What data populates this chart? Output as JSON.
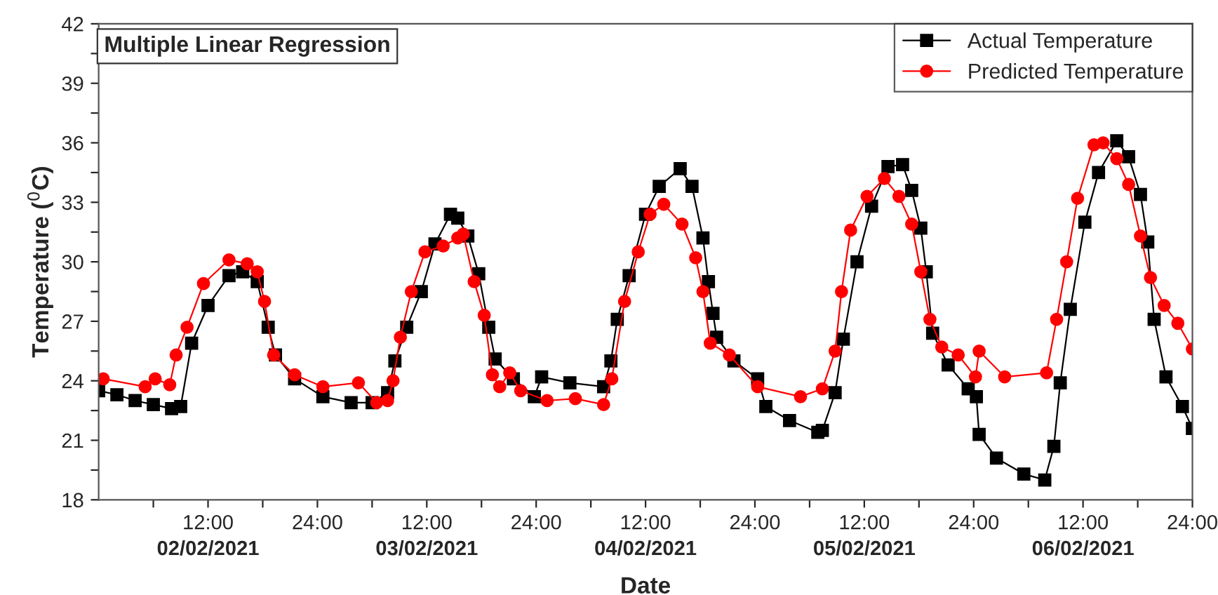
{
  "chart_data": {
    "type": "line",
    "title": "Multiple Linear Regression",
    "xlabel": "Date",
    "ylabel": "Temperature ($^{0}$C)",
    "xlim": [
      "2021-02-02T00:00",
      "2021-02-07T00:00"
    ],
    "ylim": [
      18,
      42
    ],
    "xticks": [
      {
        "value": "2021-02-02T06:00",
        "label": null
      },
      {
        "value": "2021-02-02T12:00",
        "label": "12:00"
      },
      {
        "value": "2021-02-02T18:00",
        "label": null
      },
      {
        "value": "2021-02-03T00:00",
        "label": "24:00"
      },
      {
        "value": "2021-02-03T06:00",
        "label": null
      },
      {
        "value": "2021-02-03T12:00",
        "label": "12:00"
      },
      {
        "value": "2021-02-03T18:00",
        "label": null
      },
      {
        "value": "2021-02-04T00:00",
        "label": "24:00"
      },
      {
        "value": "2021-02-04T06:00",
        "label": null
      },
      {
        "value": "2021-02-04T12:00",
        "label": "12:00"
      },
      {
        "value": "2021-02-04T18:00",
        "label": null
      },
      {
        "value": "2021-02-05T00:00",
        "label": "24:00"
      },
      {
        "value": "2021-02-05T06:00",
        "label": null
      },
      {
        "value": "2021-02-05T12:00",
        "label": "12:00"
      },
      {
        "value": "2021-02-05T18:00",
        "label": null
      },
      {
        "value": "2021-02-06T00:00",
        "label": "24:00"
      },
      {
        "value": "2021-02-06T06:00",
        "label": null
      },
      {
        "value": "2021-02-06T12:00",
        "label": "12:00"
      },
      {
        "value": "2021-02-06T18:00",
        "label": null
      },
      {
        "value": "2021-02-07T00:00",
        "label": "24:00"
      }
    ],
    "yticks": [
      18,
      {
        "value": 19.5,
        "label": null
      },
      21,
      {
        "value": 22.5,
        "label": null
      },
      24,
      {
        "value": 25.5,
        "label": null
      },
      27,
      {
        "value": 28.5,
        "label": null
      },
      30,
      {
        "value": 31.5,
        "label": null
      },
      33,
      {
        "value": 34.5,
        "label": null
      },
      36,
      {
        "value": 37.5,
        "label": null
      },
      39,
      {
        "value": 40.5,
        "label": null
      },
      42
    ],
    "grid": false,
    "legend": "top right",
    "line_style": "solid",
    "annotations": [
      "02/02/2021",
      "03/02/2021",
      "04/02/2021",
      "05/02/2021",
      "06/02/2021"
    ],
    "series": [
      {
        "name": "Actual Temperature",
        "color": "#000000",
        "marker": "square",
        "x": [
          "2021-02-02T00:00",
          "2021-02-02T02:00",
          "2021-02-02T04:00",
          "2021-02-02T06:00",
          "2021-02-02T08:00",
          "2021-02-02T09:00",
          "2021-02-02T10:12",
          "2021-02-02T12:00",
          "2021-02-02T14:18",
          "2021-02-02T15:48",
          "2021-02-02T17:24",
          "2021-02-02T18:36",
          "2021-02-02T19:24",
          "2021-02-02T21:30",
          "2021-02-03T00:36",
          "2021-02-03T03:42",
          "2021-02-03T06:00",
          "2021-02-03T07:42",
          "2021-02-03T08:30",
          "2021-02-03T09:48",
          "2021-02-03T11:24",
          "2021-02-03T12:54",
          "2021-02-03T14:36",
          "2021-02-03T15:24",
          "2021-02-03T16:30",
          "2021-02-03T17:42",
          "2021-02-03T18:48",
          "2021-02-03T19:30",
          "2021-02-03T21:30",
          "2021-02-03T23:48",
          "2021-02-04T00:36",
          "2021-02-04T03:42",
          "2021-02-04T07:24",
          "2021-02-04T08:12",
          "2021-02-04T08:54",
          "2021-02-04T10:12",
          "2021-02-04T12:00",
          "2021-02-04T13:30",
          "2021-02-04T15:48",
          "2021-02-04T17:06",
          "2021-02-04T18:18",
          "2021-02-04T18:54",
          "2021-02-04T19:24",
          "2021-02-04T19:48",
          "2021-02-04T21:42",
          "2021-02-05T00:18",
          "2021-02-05T01:12",
          "2021-02-05T03:48",
          "2021-02-05T06:54",
          "2021-02-05T07:24",
          "2021-02-05T08:48",
          "2021-02-05T09:42",
          "2021-02-05T11:12",
          "2021-02-05T12:48",
          "2021-02-05T14:36",
          "2021-02-05T16:12",
          "2021-02-05T17:12",
          "2021-02-05T18:12",
          "2021-02-05T18:48",
          "2021-02-05T19:30",
          "2021-02-05T21:12",
          "2021-02-05T23:24",
          "2021-02-06T00:18",
          "2021-02-06T00:36",
          "2021-02-06T02:30",
          "2021-02-06T05:30",
          "2021-02-06T07:48",
          "2021-02-06T08:48",
          "2021-02-06T09:30",
          "2021-02-06T10:36",
          "2021-02-06T12:12",
          "2021-02-06T13:42",
          "2021-02-06T15:42",
          "2021-02-06T17:00",
          "2021-02-06T18:18",
          "2021-02-06T19:06",
          "2021-02-06T19:48",
          "2021-02-06T21:06",
          "2021-02-06T22:54",
          "2021-02-07T00:00"
        ],
        "values": [
          23.5,
          23.3,
          23.0,
          22.8,
          22.6,
          22.7,
          25.9,
          27.8,
          29.3,
          29.5,
          29.0,
          26.7,
          25.3,
          24.1,
          23.2,
          22.9,
          22.9,
          23.4,
          25.0,
          26.7,
          28.5,
          30.9,
          32.4,
          32.2,
          31.3,
          29.4,
          26.7,
          25.1,
          24.1,
          23.2,
          24.2,
          23.9,
          23.7,
          25.0,
          27.1,
          29.3,
          32.4,
          33.8,
          34.7,
          33.8,
          31.2,
          29.0,
          27.4,
          26.2,
          25.0,
          24.1,
          22.7,
          22.0,
          21.4,
          21.5,
          23.4,
          26.1,
          30.0,
          32.8,
          34.8,
          34.9,
          33.6,
          31.7,
          29.5,
          26.4,
          24.8,
          23.6,
          23.2,
          21.3,
          20.1,
          19.3,
          19.0,
          20.7,
          23.9,
          27.6,
          32.0,
          34.5,
          36.1,
          35.3,
          33.4,
          31.0,
          27.1,
          24.2,
          22.7,
          21.6
        ]
      },
      {
        "name": "Predicted Temperature",
        "color": "#ff0000",
        "marker": "circle",
        "x": [
          "2021-02-02T00:30",
          "2021-02-02T05:06",
          "2021-02-02T06:12",
          "2021-02-02T07:48",
          "2021-02-02T08:30",
          "2021-02-02T09:42",
          "2021-02-02T11:30",
          "2021-02-02T14:18",
          "2021-02-02T16:18",
          "2021-02-02T17:24",
          "2021-02-02T18:12",
          "2021-02-02T19:12",
          "2021-02-02T21:30",
          "2021-02-03T00:36",
          "2021-02-03T04:30",
          "2021-02-03T06:30",
          "2021-02-03T07:42",
          "2021-02-03T08:18",
          "2021-02-03T09:06",
          "2021-02-03T10:18",
          "2021-02-03T11:48",
          "2021-02-03T13:48",
          "2021-02-03T15:24",
          "2021-02-03T16:00",
          "2021-02-03T17:12",
          "2021-02-03T18:18",
          "2021-02-03T19:12",
          "2021-02-03T20:00",
          "2021-02-03T21:06",
          "2021-02-03T22:18",
          "2021-02-04T01:12",
          "2021-02-04T04:18",
          "2021-02-04T07:24",
          "2021-02-04T08:18",
          "2021-02-04T09:42",
          "2021-02-04T11:12",
          "2021-02-04T12:30",
          "2021-02-04T14:00",
          "2021-02-04T16:00",
          "2021-02-04T17:30",
          "2021-02-04T18:18",
          "2021-02-04T19:06",
          "2021-02-04T21:12",
          "2021-02-05T00:18",
          "2021-02-05T05:00",
          "2021-02-05T07:24",
          "2021-02-05T08:48",
          "2021-02-05T09:30",
          "2021-02-05T10:30",
          "2021-02-05T12:18",
          "2021-02-05T14:12",
          "2021-02-05T15:48",
          "2021-02-05T17:12",
          "2021-02-05T18:12",
          "2021-02-05T19:12",
          "2021-02-05T20:30",
          "2021-02-05T22:18",
          "2021-02-06T00:12",
          "2021-02-06T00:36",
          "2021-02-06T03:24",
          "2021-02-06T08:00",
          "2021-02-06T09:06",
          "2021-02-06T10:12",
          "2021-02-06T11:24",
          "2021-02-06T13:12",
          "2021-02-06T14:12",
          "2021-02-06T15:42",
          "2021-02-06T17:00",
          "2021-02-06T18:18",
          "2021-02-06T19:24",
          "2021-02-06T20:54",
          "2021-02-06T22:24",
          "2021-02-07T00:00"
        ],
        "values": [
          24.1,
          23.7,
          24.1,
          23.8,
          25.3,
          26.7,
          28.9,
          30.1,
          29.9,
          29.5,
          28.0,
          25.3,
          24.3,
          23.7,
          23.9,
          22.9,
          23.0,
          24.0,
          26.2,
          28.5,
          30.5,
          30.8,
          31.2,
          31.4,
          29.0,
          27.3,
          24.3,
          23.7,
          24.4,
          23.5,
          23.0,
          23.1,
          22.8,
          24.1,
          28.0,
          30.5,
          32.4,
          32.9,
          31.9,
          30.2,
          28.5,
          25.9,
          25.3,
          23.7,
          23.2,
          23.6,
          25.5,
          28.5,
          31.6,
          33.3,
          34.2,
          33.3,
          31.9,
          29.5,
          27.1,
          25.7,
          25.3,
          24.2,
          25.5,
          24.2,
          24.4,
          27.1,
          30.0,
          33.2,
          35.9,
          36.0,
          35.2,
          33.9,
          31.3,
          29.2,
          27.8,
          26.9,
          25.6
        ]
      }
    ]
  }
}
